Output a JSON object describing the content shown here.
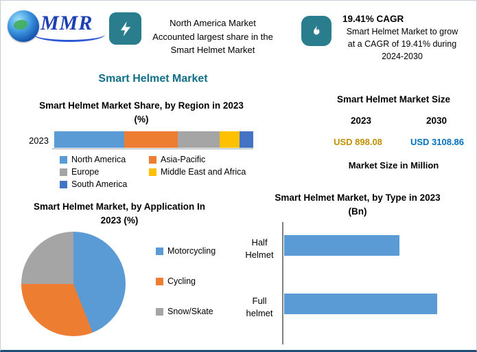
{
  "colors": {
    "accent_teal": "#2A7D8C",
    "page_title": "#106E86",
    "border_bottom": "#1F4E79"
  },
  "header": {
    "logo_text": "MMR",
    "highlight1": {
      "icon": "lightning-icon",
      "lines": [
        "North America Market",
        "Accounted largest share in the",
        "Smart Helmet Market"
      ]
    },
    "highlight2": {
      "icon": "flame-icon",
      "heading": "19.41% CAGR",
      "lines": [
        "Smart Helmet Market to grow",
        "at a CAGR of 19.41% during",
        "2024-2030"
      ]
    }
  },
  "page_title": "Smart Helmet Market",
  "market_size": {
    "title": "Smart Helmet Market Size",
    "columns": [
      {
        "year": "2023",
        "value": "USD 898.08",
        "color": "#BF9000"
      },
      {
        "year": "2030",
        "value": "USD 3108.86",
        "color": "#0070C0"
      }
    ],
    "note": "Market Size in Million"
  },
  "chart_data": [
    {
      "type": "bar",
      "variant": "stacked-horizontal",
      "title": "Smart Helmet Market Share, by Region in 2023 (%)",
      "categories": [
        "2023"
      ],
      "series": [
        {
          "name": "North America",
          "color": "#5B9BD5",
          "values": [
            35
          ]
        },
        {
          "name": "Asia-Pacific",
          "color": "#ED7D31",
          "values": [
            27
          ]
        },
        {
          "name": "Europe",
          "color": "#A5A5A5",
          "values": [
            21
          ]
        },
        {
          "name": "Middle East and Africa",
          "color": "#FFC000",
          "values": [
            10
          ]
        },
        {
          "name": "South America",
          "color": "#4472C4",
          "values": [
            7
          ]
        }
      ],
      "legend_position": "bottom",
      "note": "segment values estimated from bar lengths; no data labels shown"
    },
    {
      "type": "pie",
      "title": "Smart Helmet Market, by Application In 2023 (%)",
      "labels": [
        "Motorcycling",
        "Cycling",
        "Snow/Skate"
      ],
      "values": [
        44,
        31,
        25
      ],
      "colors": [
        "#5B9BD5",
        "#ED7D31",
        "#A5A5A5"
      ],
      "legend_position": "right",
      "note": "slice values estimated from angles; no data labels shown"
    },
    {
      "type": "bar",
      "variant": "horizontal",
      "title": "Smart Helmet Market, by Type in 2023 (Bn)",
      "categories": [
        "Half Helmet",
        "Full helmet"
      ],
      "values": [
        67,
        89
      ],
      "color": "#5B9BD5",
      "note": "values are estimated relative bar lengths (% of plot width); no value axis shown"
    }
  ]
}
